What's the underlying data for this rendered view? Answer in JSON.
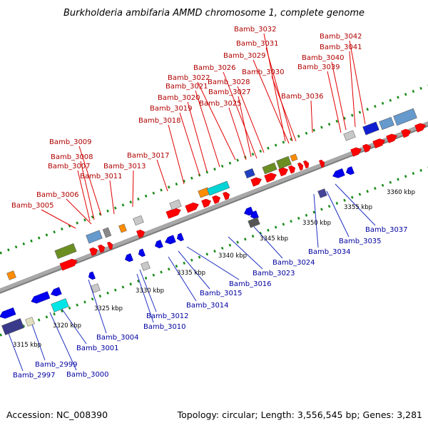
{
  "title": "Burkholderia ambifaria AMMD chromosome 1, complete genome",
  "footer": {
    "accession": "Accession: NC_008390",
    "topology": "Topology: circular; Length: 3,556,545 bp; Genes: 3,281"
  },
  "colors": {
    "forward": "#ff0000",
    "reverse": "#0000ee",
    "backbone": "#a8a8a8",
    "dots": "#1a8c1a",
    "upper_label": "#b00000",
    "lower_label": "#0000a0"
  },
  "ticks": [
    "3315 kbp",
    "3320 kbp",
    "3325 kbp",
    "3330 kbp",
    "3335 kbp",
    "3340 kbp",
    "3345 kbp",
    "3350 kbp",
    "3355 kbp",
    "3360 kbp"
  ],
  "upper_labels": [
    "Bamb_3032",
    "Bamb_3042",
    "Bamb_3031",
    "Bamb_3041",
    "Bamb_3029",
    "Bamb_3040",
    "Bamb_3026",
    "Bamb_3039",
    "Bamb_3030",
    "Bamb_3022",
    "Bamb_3028",
    "Bamb_3021",
    "Bamb_3027",
    "Bamb_3036",
    "Bamb_3020",
    "Bamb_3025",
    "Bamb_3019",
    "Bamb_3018",
    "Bamb_3009",
    "Bamb_3017",
    "Bamb_3008",
    "Bamb_3007",
    "Bamb_3013",
    "Bamb_3011",
    "Bamb_3006",
    "Bamb_3005"
  ],
  "lower_labels": [
    "Bamb_3037",
    "Bamb_3035",
    "Bamb_3034",
    "Bamb_3024",
    "Bamb_3023",
    "Bamb_3016",
    "Bamb_3015",
    "Bamb_3014",
    "Bamb_3012",
    "Bamb_3010",
    "Bamb_3004",
    "Bamb_3001",
    "Bamb_2999",
    "Bamb_3000",
    "Bamb_2997"
  ]
}
